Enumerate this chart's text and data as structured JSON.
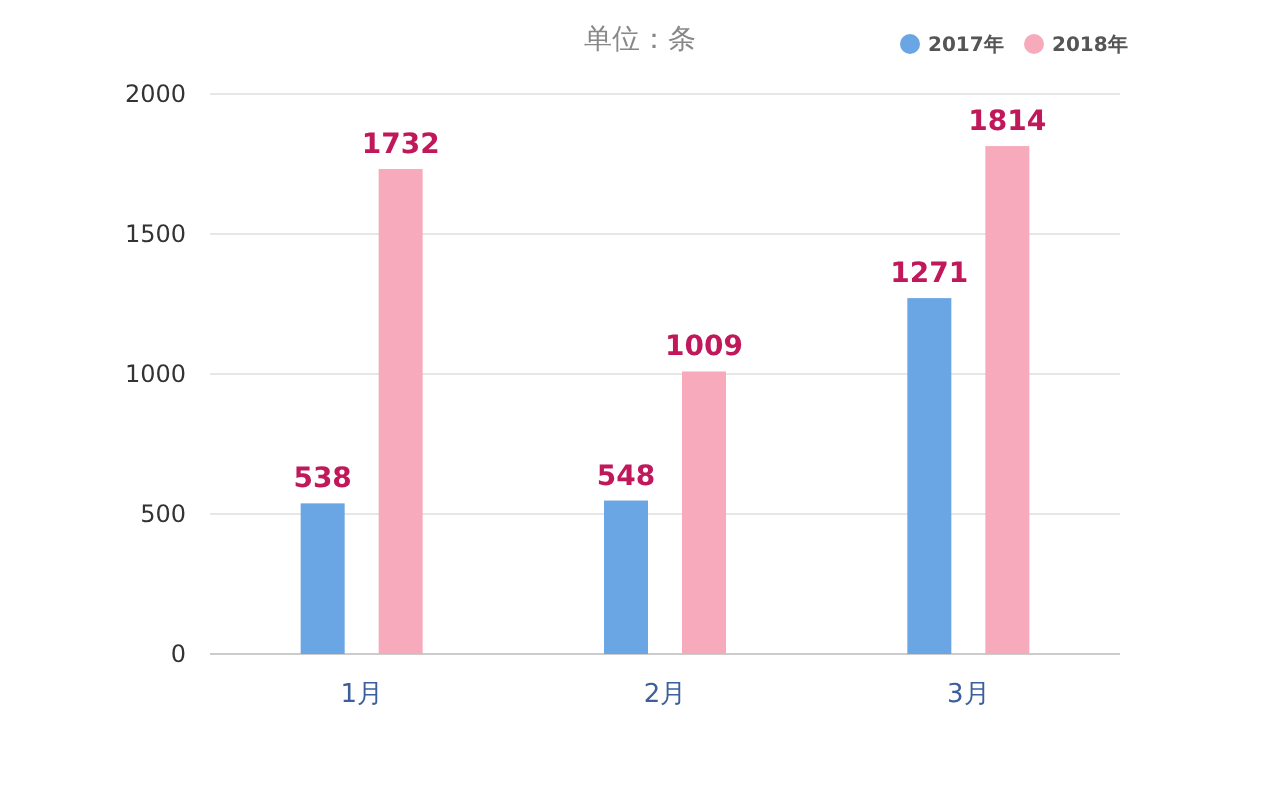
{
  "chart_data": {
    "type": "bar",
    "title": "单位：条",
    "categories": [
      "1月",
      "2月",
      "3月"
    ],
    "series": [
      {
        "name": "2017年",
        "color": "#6aa6e3",
        "values": [
          538,
          548,
          1271
        ]
      },
      {
        "name": "2018年",
        "color": "#f7aabb",
        "values": [
          1732,
          1009,
          1814
        ]
      }
    ],
    "ylim": [
      0,
      2000
    ],
    "yticks": [
      0,
      500,
      1000,
      1500,
      2000
    ],
    "grid": "y",
    "legend": "top right",
    "data_labels": true
  }
}
